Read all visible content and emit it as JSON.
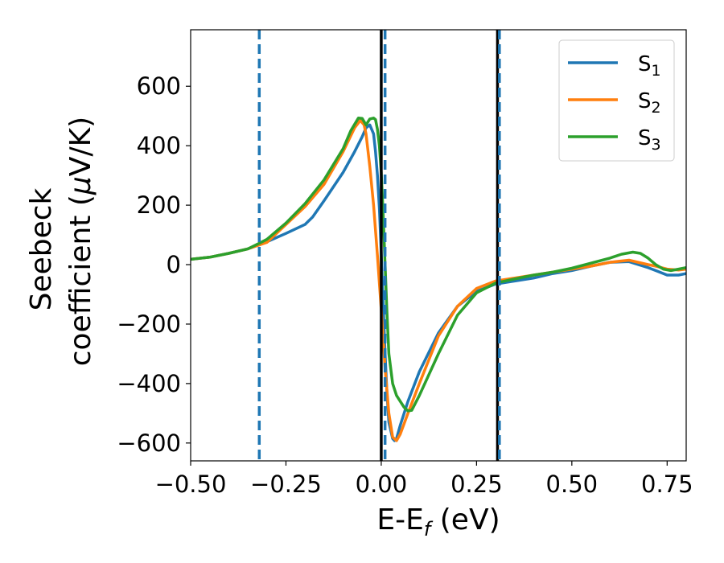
{
  "chart_data": {
    "type": "line",
    "xlabel": "E-E",
    "xlabel_sub": "f",
    "xlabel_unit": " (eV)",
    "ylabel_line1": "Seebeck",
    "ylabel_line2": "coefficient  (",
    "ylabel_mu": "μ",
    "ylabel_unit": "V/K)",
    "xlim": [
      -0.5,
      0.8
    ],
    "ylim": [
      -660,
      790
    ],
    "x_ticks": [
      -0.5,
      -0.25,
      0.0,
      0.25,
      0.5,
      0.75
    ],
    "x_tick_labels": [
      "−0.50",
      "−0.25",
      "0.00",
      "0.25",
      "0.50",
      "0.75"
    ],
    "y_ticks": [
      -600,
      -400,
      -200,
      0,
      200,
      400,
      600
    ],
    "y_tick_labels": [
      "−600",
      "−400",
      "−200",
      "0",
      "200",
      "400",
      "600"
    ],
    "grid": false,
    "legend_position": "top-right",
    "series": [
      {
        "name": "S",
        "sub": "1",
        "color": "#1f77b4",
        "points": [
          [
            -0.5,
            18
          ],
          [
            -0.45,
            25
          ],
          [
            -0.4,
            38
          ],
          [
            -0.35,
            53
          ],
          [
            -0.32,
            67
          ],
          [
            -0.3,
            77
          ],
          [
            -0.25,
            105
          ],
          [
            -0.2,
            135
          ],
          [
            -0.18,
            160
          ],
          [
            -0.15,
            215
          ],
          [
            -0.1,
            310
          ],
          [
            -0.07,
            380
          ],
          [
            -0.05,
            430
          ],
          [
            -0.04,
            460
          ],
          [
            -0.03,
            470
          ],
          [
            -0.02,
            440
          ],
          [
            -0.015,
            380
          ],
          [
            -0.01,
            300
          ],
          [
            -0.005,
            190
          ],
          [
            0.0,
            40
          ],
          [
            0.005,
            -130
          ],
          [
            0.01,
            -300
          ],
          [
            0.015,
            -430
          ],
          [
            0.02,
            -530
          ],
          [
            0.03,
            -585
          ],
          [
            0.035,
            -592
          ],
          [
            0.04,
            -585
          ],
          [
            0.05,
            -540
          ],
          [
            0.07,
            -460
          ],
          [
            0.1,
            -360
          ],
          [
            0.15,
            -230
          ],
          [
            0.2,
            -140
          ],
          [
            0.25,
            -90
          ],
          [
            0.3,
            -65
          ],
          [
            0.35,
            -55
          ],
          [
            0.4,
            -45
          ],
          [
            0.45,
            -30
          ],
          [
            0.5,
            -20
          ],
          [
            0.55,
            -5
          ],
          [
            0.6,
            8
          ],
          [
            0.65,
            10
          ],
          [
            0.7,
            -10
          ],
          [
            0.72,
            -20
          ],
          [
            0.75,
            -35
          ],
          [
            0.78,
            -35
          ],
          [
            0.8,
            -30
          ]
        ]
      },
      {
        "name": "S",
        "sub": "2",
        "color": "#ff7f0e",
        "points": [
          [
            -0.5,
            18
          ],
          [
            -0.45,
            25
          ],
          [
            -0.4,
            38
          ],
          [
            -0.35,
            53
          ],
          [
            -0.3,
            75
          ],
          [
            -0.25,
            135
          ],
          [
            -0.2,
            195
          ],
          [
            -0.15,
            270
          ],
          [
            -0.1,
            380
          ],
          [
            -0.07,
            460
          ],
          [
            -0.055,
            485
          ],
          [
            -0.045,
            470
          ],
          [
            -0.04,
            440
          ],
          [
            -0.03,
            330
          ],
          [
            -0.02,
            200
          ],
          [
            -0.01,
            30
          ],
          [
            0.0,
            -150
          ],
          [
            0.01,
            -350
          ],
          [
            0.02,
            -500
          ],
          [
            0.03,
            -580
          ],
          [
            0.04,
            -592
          ],
          [
            0.05,
            -570
          ],
          [
            0.07,
            -500
          ],
          [
            0.1,
            -400
          ],
          [
            0.15,
            -240
          ],
          [
            0.2,
            -140
          ],
          [
            0.25,
            -80
          ],
          [
            0.3,
            -55
          ],
          [
            0.35,
            -45
          ],
          [
            0.4,
            -35
          ],
          [
            0.45,
            -25
          ],
          [
            0.5,
            -15
          ],
          [
            0.55,
            -5
          ],
          [
            0.6,
            8
          ],
          [
            0.65,
            15
          ],
          [
            0.7,
            0
          ],
          [
            0.72,
            -5
          ],
          [
            0.75,
            -15
          ],
          [
            0.78,
            -18
          ],
          [
            0.8,
            -15
          ]
        ]
      },
      {
        "name": "S",
        "sub": "3",
        "color": "#2ca02c",
        "points": [
          [
            -0.5,
            18
          ],
          [
            -0.45,
            25
          ],
          [
            -0.4,
            38
          ],
          [
            -0.35,
            53
          ],
          [
            -0.32,
            72
          ],
          [
            -0.3,
            85
          ],
          [
            -0.25,
            140
          ],
          [
            -0.2,
            205
          ],
          [
            -0.15,
            285
          ],
          [
            -0.1,
            390
          ],
          [
            -0.08,
            450
          ],
          [
            -0.06,
            493
          ],
          [
            -0.05,
            492
          ],
          [
            -0.04,
            470
          ],
          [
            -0.03,
            490
          ],
          [
            -0.02,
            493
          ],
          [
            -0.015,
            488
          ],
          [
            -0.01,
            455
          ],
          [
            -0.005,
            400
          ],
          [
            0.0,
            310
          ],
          [
            0.005,
            170
          ],
          [
            0.01,
            0
          ],
          [
            0.015,
            -160
          ],
          [
            0.02,
            -300
          ],
          [
            0.03,
            -400
          ],
          [
            0.04,
            -440
          ],
          [
            0.05,
            -460
          ],
          [
            0.06,
            -480
          ],
          [
            0.07,
            -492
          ],
          [
            0.08,
            -490
          ],
          [
            0.1,
            -440
          ],
          [
            0.15,
            -300
          ],
          [
            0.2,
            -170
          ],
          [
            0.25,
            -95
          ],
          [
            0.3,
            -62
          ],
          [
            0.35,
            -48
          ],
          [
            0.4,
            -35
          ],
          [
            0.45,
            -25
          ],
          [
            0.5,
            -12
          ],
          [
            0.55,
            5
          ],
          [
            0.6,
            22
          ],
          [
            0.63,
            35
          ],
          [
            0.66,
            42
          ],
          [
            0.68,
            38
          ],
          [
            0.7,
            22
          ],
          [
            0.72,
            0
          ],
          [
            0.74,
            -15
          ],
          [
            0.76,
            -20
          ],
          [
            0.78,
            -15
          ],
          [
            0.8,
            -10
          ]
        ]
      }
    ],
    "vertical_lines": [
      {
        "x": -0.32,
        "style": "dashed",
        "color": "#1f77b4"
      },
      {
        "x": 0.0,
        "style": "solid",
        "color": "#000000"
      },
      {
        "x": 0.01,
        "style": "dashed",
        "color": "#1f77b4"
      },
      {
        "x": 0.305,
        "style": "solid",
        "color": "#000000"
      },
      {
        "x": 0.31,
        "style": "dashed",
        "color": "#1f77b4"
      }
    ]
  }
}
